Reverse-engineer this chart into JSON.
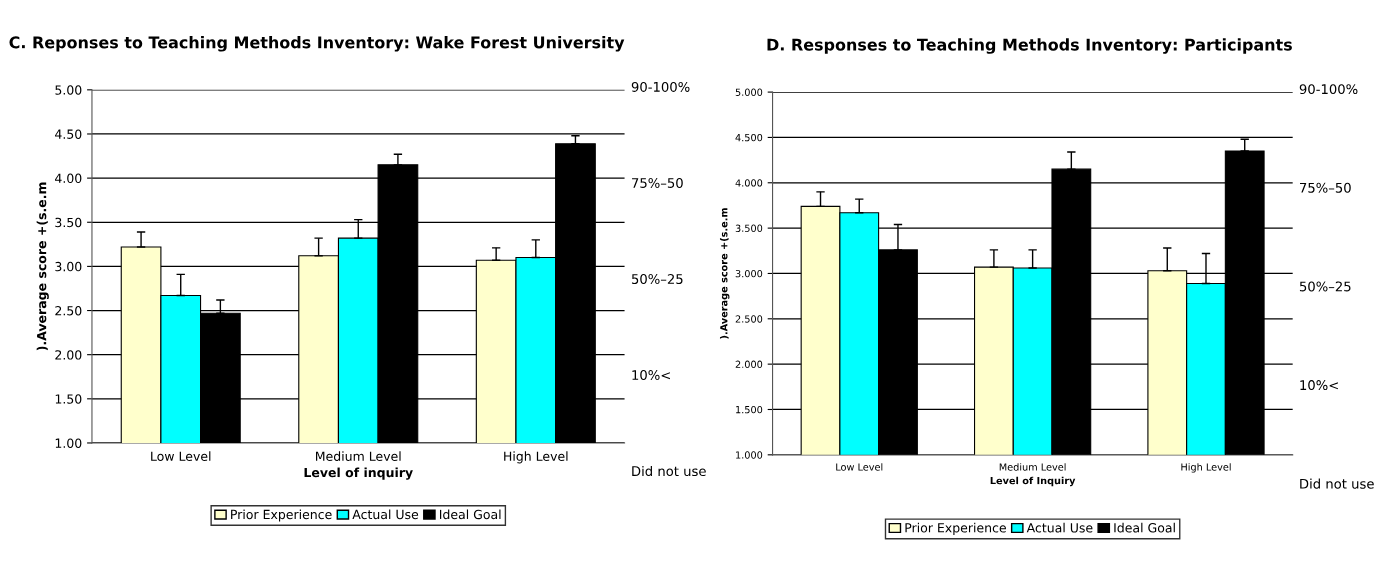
{
  "chart_data": [
    {
      "type": "bar",
      "title": "C. Reponses to Teaching Methods Inventory: Wake Forest University",
      "xlabel": "Level of inquiry",
      "ylabel": ").Average score +(s.e.m",
      "categories": [
        "Low Level",
        "Medium Level",
        "High Level"
      ],
      "series": [
        {
          "name": "Prior Experience",
          "color": "#ffffcc",
          "values": [
            3.22,
            3.12,
            3.07
          ],
          "errors": [
            [
              3.22,
              3.39
            ],
            [
              3.12,
              3.32
            ],
            [
              3.07,
              3.21
            ]
          ]
        },
        {
          "name": "Actual Use",
          "color": "#00ffff",
          "values": [
            2.67,
            3.32,
            3.1
          ],
          "errors": [
            [
              2.67,
              2.91
            ],
            [
              3.32,
              3.53
            ],
            [
              3.1,
              3.3
            ]
          ]
        },
        {
          "name": "Ideal Goal",
          "color": "#000000",
          "values": [
            2.47,
            4.15,
            4.39
          ],
          "errors": [
            [
              2.47,
              2.62
            ],
            [
              4.15,
              4.27
            ],
            [
              4.39,
              4.48
            ]
          ]
        }
      ],
      "ylim": [
        1,
        5
      ],
      "yticks": [
        {
          "value": 1,
          "label": "1.00"
        },
        {
          "value": 1.5,
          "label": "1.50"
        },
        {
          "value": 2,
          "label": "2.00"
        },
        {
          "value": 2.5,
          "label": "2.50"
        },
        {
          "value": 3,
          "label": "3.00"
        },
        {
          "value": 3.5,
          "label": "3.50"
        },
        {
          "value": 4,
          "label": "4.00"
        },
        {
          "value": 4.5,
          "label": "4.50"
        },
        {
          "value": 5,
          "label": "5.00"
        }
      ],
      "annotations": [
        "90-100%",
        "75%–50",
        "50%–25",
        "10%<",
        "Did not use"
      ],
      "grid": "y",
      "legend": "bottom"
    },
    {
      "type": "bar",
      "title": "D. Responses to Teaching Methods Inventory: Participants",
      "xlabel": "Level of Inquiry",
      "ylabel": ").Average score +(s.e.m",
      "categories": [
        "Low Level",
        "Medium Level",
        "High Level"
      ],
      "series": [
        {
          "name": "Prior Experience",
          "color": "#ffffcc",
          "values": [
            3.74,
            3.07,
            3.03
          ],
          "errors": [
            [
              3.74,
              3.9
            ],
            [
              3.07,
              3.26
            ],
            [
              3.03,
              3.28
            ]
          ]
        },
        {
          "name": "Actual Use",
          "color": "#00ffff",
          "values": [
            3.67,
            3.06,
            2.89
          ],
          "errors": [
            [
              3.67,
              3.82
            ],
            [
              3.06,
              3.26
            ],
            [
              2.89,
              3.22
            ]
          ]
        },
        {
          "name": "Ideal Goal",
          "color": "#000000",
          "values": [
            3.26,
            4.15,
            4.35
          ],
          "errors": [
            [
              3.26,
              3.54
            ],
            [
              4.15,
              4.34
            ],
            [
              4.35,
              4.48
            ]
          ]
        }
      ],
      "ylim": [
        1,
        5
      ],
      "yticks": [
        {
          "value": 1,
          "label": "1.000"
        },
        {
          "value": 1.5,
          "label": "1.500"
        },
        {
          "value": 2,
          "label": "2.000"
        },
        {
          "value": 2.5,
          "label": "2.500"
        },
        {
          "value": 3,
          "label": "3.000"
        },
        {
          "value": 3.5,
          "label": "3.500"
        },
        {
          "value": 4,
          "label": "4.000"
        },
        {
          "value": 4.5,
          "label": "4.500"
        },
        {
          "value": 5,
          "label": "5.000"
        }
      ],
      "annotations": [
        "90-100%",
        "75%–50",
        "50%–25",
        "10%<",
        "Did not use"
      ],
      "grid": "y",
      "legend": "bottom"
    }
  ]
}
